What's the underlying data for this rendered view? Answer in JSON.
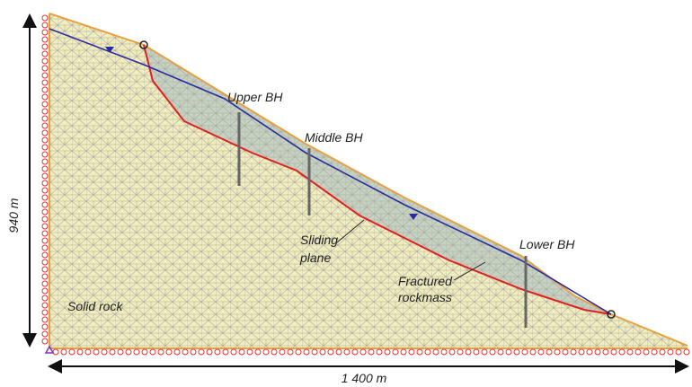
{
  "annotations": {
    "upper_bh": "Upper BH",
    "middle_bh": "Middle BH",
    "lower_bh": "Lower BH",
    "sliding_plane": [
      "Sliding",
      "plane"
    ],
    "fractured_rockmass": [
      "Fractured",
      "rockmass"
    ],
    "solid_rock": "Solid rock"
  },
  "dimensions": {
    "height": "940 m",
    "width": "1 400 m"
  }
}
